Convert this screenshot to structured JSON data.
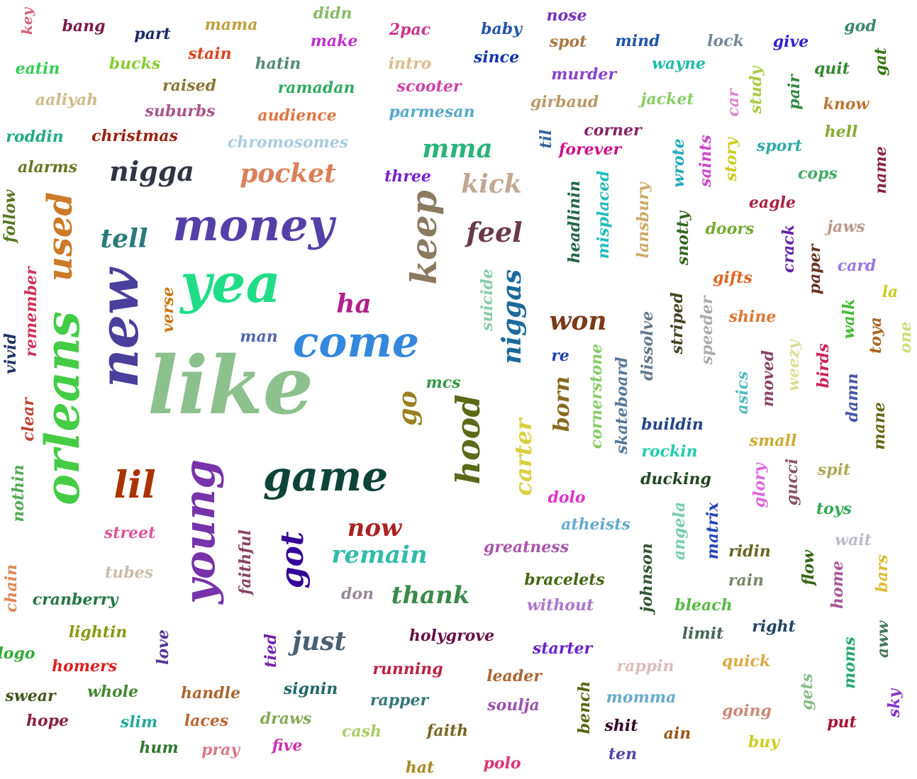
{
  "words": [
    {
      "text": "like",
      "color": "#8cc08c"
    },
    {
      "text": "new",
      "color": "#4a3f9c"
    },
    {
      "text": "orleans",
      "color": "#44cc44"
    },
    {
      "text": "yea",
      "color": "#22dd88"
    },
    {
      "text": "money",
      "color": "#5540a8"
    },
    {
      "text": "come",
      "color": "#3388dd"
    },
    {
      "text": "game",
      "color": "#0c4438"
    },
    {
      "text": "young",
      "color": "#7733aa"
    },
    {
      "text": "keep",
      "color": "#8a7a60"
    },
    {
      "text": "hood",
      "color": "#5a6a18"
    },
    {
      "text": "used",
      "color": "#cc7a28"
    },
    {
      "text": "lil",
      "color": "#aa3300"
    },
    {
      "text": "got",
      "color": "#330099"
    },
    {
      "text": "nigga",
      "color": "#2f3542"
    },
    {
      "text": "pocket",
      "color": "#d9805a"
    },
    {
      "text": "mma",
      "color": "#2ab37a"
    },
    {
      "text": "kick",
      "color": "#c0a890"
    },
    {
      "text": "feel",
      "color": "#6a3a48"
    },
    {
      "text": "tell",
      "color": "#2a7a7a"
    },
    {
      "text": "ha",
      "color": "#b0208a"
    },
    {
      "text": "niggas",
      "color": "#1a6a9a"
    },
    {
      "text": "won",
      "color": "#7a3a1a"
    },
    {
      "text": "go",
      "color": "#9a8020"
    },
    {
      "text": "carter",
      "color": "#d8d040"
    },
    {
      "text": "now",
      "color": "#aa2222"
    },
    {
      "text": "remain",
      "color": "#33bbaa"
    },
    {
      "text": "thank",
      "color": "#3a8a4a"
    },
    {
      "text": "just",
      "color": "#4a6070"
    },
    {
      "text": "born",
      "color": "#8a6a20"
    },
    {
      "text": "key",
      "color": "#d9607a"
    },
    {
      "text": "bang",
      "color": "#7a1a48"
    },
    {
      "text": "part",
      "color": "#1a2a6a"
    },
    {
      "text": "mama",
      "color": "#c0a040"
    },
    {
      "text": "didn",
      "color": "#88bb66"
    },
    {
      "text": "make",
      "color": "#bb33cc"
    },
    {
      "text": "2pac",
      "color": "#cc3388"
    },
    {
      "text": "baby",
      "color": "#2255aa"
    },
    {
      "text": "nose",
      "color": "#7733bb"
    },
    {
      "text": "spot",
      "color": "#aa7744"
    },
    {
      "text": "mind",
      "color": "#2255aa"
    },
    {
      "text": "lock",
      "color": "#778899"
    },
    {
      "text": "give",
      "color": "#3322cc"
    },
    {
      "text": "god",
      "color": "#3a8a6a"
    },
    {
      "text": "eatin",
      "color": "#33cc55"
    },
    {
      "text": "bucks",
      "color": "#88cc33"
    },
    {
      "text": "stain",
      "color": "#dd4422"
    },
    {
      "text": "hatin",
      "color": "#558877"
    },
    {
      "text": "intro",
      "color": "#ddbb88"
    },
    {
      "text": "since",
      "color": "#1133aa"
    },
    {
      "text": "murder",
      "color": "#8844cc"
    },
    {
      "text": "wayne",
      "color": "#22bbaa"
    },
    {
      "text": "quit",
      "color": "#338833"
    },
    {
      "text": "gat",
      "color": "#337711"
    },
    {
      "text": "raised",
      "color": "#887733"
    },
    {
      "text": "ramadan",
      "color": "#33aa66"
    },
    {
      "text": "scooter",
      "color": "#cc44aa"
    },
    {
      "text": "aaliyah",
      "color": "#ccbb88"
    },
    {
      "text": "suburbs",
      "color": "#aa5588"
    },
    {
      "text": "audience",
      "color": "#dd7744"
    },
    {
      "text": "parmesan",
      "color": "#55aacc"
    },
    {
      "text": "girbaud",
      "color": "#bb9966"
    },
    {
      "text": "jacket",
      "color": "#88cc66"
    },
    {
      "text": "car",
      "color": "#dd88cc"
    },
    {
      "text": "study",
      "color": "#aacc44"
    },
    {
      "text": "pair",
      "color": "#338844"
    },
    {
      "text": "know",
      "color": "#bb7733"
    },
    {
      "text": "roddin",
      "color": "#22aa88"
    },
    {
      "text": "christmas",
      "color": "#992211"
    },
    {
      "text": "chromosomes",
      "color": "#aaccdd"
    },
    {
      "text": "corner",
      "color": "#882266"
    },
    {
      "text": "til",
      "color": "#336699"
    },
    {
      "text": "forever",
      "color": "#cc1188"
    },
    {
      "text": "hell",
      "color": "#88aa33"
    },
    {
      "text": "sport",
      "color": "#33aaaa"
    },
    {
      "text": "alarms",
      "color": "#667722"
    },
    {
      "text": "three",
      "color": "#7722cc"
    },
    {
      "text": "wrote",
      "color": "#22aabb"
    },
    {
      "text": "saints",
      "color": "#cc44cc"
    },
    {
      "text": "story",
      "color": "#cccc22"
    },
    {
      "text": "cops",
      "color": "#44aa66"
    },
    {
      "text": "name",
      "color": "#882244"
    },
    {
      "text": "follow",
      "color": "#557722"
    },
    {
      "text": "headlinin",
      "color": "#226644"
    },
    {
      "text": "misplaced",
      "color": "#22bbbb"
    },
    {
      "text": "lansbury",
      "color": "#ccaa66"
    },
    {
      "text": "snotty",
      "color": "#336622"
    },
    {
      "text": "doors",
      "color": "#77aa33"
    },
    {
      "text": "eagle",
      "color": "#aa2244"
    },
    {
      "text": "crack",
      "color": "#6622aa"
    },
    {
      "text": "jaws",
      "color": "#bb9988"
    },
    {
      "text": "paper",
      "color": "#663322"
    },
    {
      "text": "card",
      "color": "#9977dd"
    },
    {
      "text": "remember",
      "color": "#cc3355"
    },
    {
      "text": "verse",
      "color": "#cc7711"
    },
    {
      "text": "suicide",
      "color": "#88ccaa"
    },
    {
      "text": "gifts",
      "color": "#dd6622"
    },
    {
      "text": "la",
      "color": "#cccc22"
    },
    {
      "text": "man",
      "color": "#5566aa"
    },
    {
      "text": "vivid",
      "color": "#223366"
    },
    {
      "text": "striped",
      "color": "#444422"
    },
    {
      "text": "speeder",
      "color": "#aaaaaa"
    },
    {
      "text": "shine",
      "color": "#dd7733"
    },
    {
      "text": "walk",
      "color": "#44bb33"
    },
    {
      "text": "toya",
      "color": "#aa6622"
    },
    {
      "text": "one",
      "color": "#ccdd77"
    },
    {
      "text": "dissolve",
      "color": "#667788"
    },
    {
      "text": "re",
      "color": "#2244aa"
    },
    {
      "text": "cornerstone",
      "color": "#88cc66"
    },
    {
      "text": "skateboard",
      "color": "#557799"
    },
    {
      "text": "asics",
      "color": "#55bbbb"
    },
    {
      "text": "moved",
      "color": "#884466"
    },
    {
      "text": "weezy",
      "color": "#dddd99"
    },
    {
      "text": "birds",
      "color": "#cc2255"
    },
    {
      "text": "damn",
      "color": "#4455aa"
    },
    {
      "text": "clear",
      "color": "#bb4433"
    },
    {
      "text": "mcs",
      "color": "#339944"
    },
    {
      "text": "buildin",
      "color": "#224488"
    },
    {
      "text": "rockin",
      "color": "#22ccaa"
    },
    {
      "text": "small",
      "color": "#ccaa33"
    },
    {
      "text": "mane",
      "color": "#666611"
    },
    {
      "text": "nothin",
      "color": "#55aa55"
    },
    {
      "text": "ducking",
      "color": "#224422"
    },
    {
      "text": "glory",
      "color": "#dd66dd"
    },
    {
      "text": "gucci",
      "color": "#885566"
    },
    {
      "text": "spit",
      "color": "#aaaa55"
    },
    {
      "text": "dolo",
      "color": "#dd33cc"
    },
    {
      "text": "street",
      "color": "#dd5599"
    },
    {
      "text": "toys",
      "color": "#33aa55"
    },
    {
      "text": "atheists",
      "color": "#66aacc"
    },
    {
      "text": "angela",
      "color": "#77ccaa"
    },
    {
      "text": "matrix",
      "color": "#2244bb"
    },
    {
      "text": "faithful",
      "color": "#884466"
    },
    {
      "text": "greatness",
      "color": "#aa55aa"
    },
    {
      "text": "ridin",
      "color": "#666622"
    },
    {
      "text": "wait",
      "color": "#bbbbcc"
    },
    {
      "text": "tubes",
      "color": "#ccbbaa"
    },
    {
      "text": "johnson",
      "color": "#335533"
    },
    {
      "text": "bracelets",
      "color": "#446611"
    },
    {
      "text": "rain",
      "color": "#778866"
    },
    {
      "text": "flow",
      "color": "#336611"
    },
    {
      "text": "home",
      "color": "#aa5599"
    },
    {
      "text": "bars",
      "color": "#ddbb33"
    },
    {
      "text": "chain",
      "color": "#dd8855"
    },
    {
      "text": "cranberry",
      "color": "#227744"
    },
    {
      "text": "don",
      "color": "#998899"
    },
    {
      "text": "without",
      "color": "#aa77cc"
    },
    {
      "text": "bleach",
      "color": "#55bb44"
    },
    {
      "text": "lightin",
      "color": "#889911"
    },
    {
      "text": "limit",
      "color": "#446655"
    },
    {
      "text": "right",
      "color": "#224466"
    },
    {
      "text": "aww",
      "color": "#447755"
    },
    {
      "text": "logo",
      "color": "#33aa33"
    },
    {
      "text": "love",
      "color": "#553399"
    },
    {
      "text": "tied",
      "color": "#7722aa"
    },
    {
      "text": "holygrove",
      "color": "#661144"
    },
    {
      "text": "starter",
      "color": "#6622cc"
    },
    {
      "text": "rappin",
      "color": "#ddbbbb"
    },
    {
      "text": "quick",
      "color": "#ddaa44"
    },
    {
      "text": "homers",
      "color": "#dd2222"
    },
    {
      "text": "running",
      "color": "#bb2244"
    },
    {
      "text": "leader",
      "color": "#aa6633"
    },
    {
      "text": "moms",
      "color": "#22aa66"
    },
    {
      "text": "swear",
      "color": "#445522"
    },
    {
      "text": "whole",
      "color": "#448833"
    },
    {
      "text": "handle",
      "color": "#aa6633"
    },
    {
      "text": "signin",
      "color": "#226666"
    },
    {
      "text": "rapper",
      "color": "#337777"
    },
    {
      "text": "momma",
      "color": "#66aacc"
    },
    {
      "text": "gets",
      "color": "#88bb88"
    },
    {
      "text": "sky",
      "color": "#8833cc"
    },
    {
      "text": "soulja",
      "color": "#9955aa"
    },
    {
      "text": "bench",
      "color": "#556611"
    },
    {
      "text": "going",
      "color": "#cc8877"
    },
    {
      "text": "hope",
      "color": "#882244"
    },
    {
      "text": "slim",
      "color": "#22aa99"
    },
    {
      "text": "laces",
      "color": "#bb6633"
    },
    {
      "text": "draws",
      "color": "#88aa55"
    },
    {
      "text": "cash",
      "color": "#aacc66"
    },
    {
      "text": "faith",
      "color": "#776622"
    },
    {
      "text": "shit",
      "color": "#330022"
    },
    {
      "text": "put",
      "color": "#aa1133"
    },
    {
      "text": "ain",
      "color": "#995511"
    },
    {
      "text": "buy",
      "color": "#cccc22"
    },
    {
      "text": "hum",
      "color": "#337733"
    },
    {
      "text": "pray",
      "color": "#dd7788"
    },
    {
      "text": "five",
      "color": "#cc33aa"
    },
    {
      "text": "ten",
      "color": "#5544aa"
    },
    {
      "text": "hat",
      "color": "#aa8822"
    },
    {
      "text": "polo",
      "color": "#dd3377"
    }
  ]
}
